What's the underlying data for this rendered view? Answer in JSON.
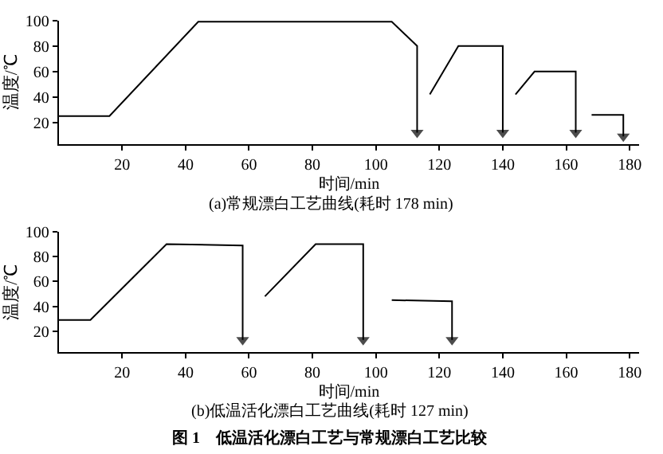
{
  "chart_data": [
    {
      "type": "line",
      "title": "(a)常规漂白工艺曲线(耗时 178 min)",
      "xlabel": "时间/min",
      "ylabel": "温度/℃",
      "xlim": [
        0,
        183
      ],
      "ylim": [
        3,
        100
      ],
      "xticks": [
        20,
        40,
        60,
        80,
        100,
        120,
        140,
        160,
        180
      ],
      "yticks": [
        20,
        40,
        60,
        80,
        100
      ],
      "line_style": "solid",
      "series": [
        {
          "color": "#000000",
          "x": [
            0,
            16,
            44,
            105,
            113,
            113
          ],
          "values": [
            25,
            25,
            99,
            99,
            80,
            12
          ]
        },
        {
          "color": "#000000",
          "x": [
            117,
            126,
            140,
            140
          ],
          "values": [
            42,
            80,
            80,
            12
          ]
        },
        {
          "color": "#000000",
          "x": [
            144,
            150,
            163,
            163
          ],
          "values": [
            42,
            60,
            60,
            12
          ]
        },
        {
          "color": "#000000",
          "x": [
            168,
            178,
            178
          ],
          "values": [
            26,
            26,
            9
          ]
        }
      ]
    },
    {
      "type": "line",
      "title": "(b)低温活化漂白工艺曲线(耗时 127 min)",
      "xlabel": "时间/min",
      "ylabel": "温度/℃",
      "xlim": [
        0,
        183
      ],
      "ylim": [
        3,
        100
      ],
      "xticks": [
        20,
        40,
        60,
        80,
        100,
        120,
        140,
        160,
        180
      ],
      "yticks": [
        20,
        40,
        60,
        80,
        100
      ],
      "line_style": "solid",
      "annotations": [
        "图 1　低温活化漂白工艺与常规漂白工艺比较"
      ],
      "series": [
        {
          "color": "#000000",
          "x": [
            0,
            10,
            34,
            58,
            58
          ],
          "values": [
            29,
            29,
            90,
            89,
            13
          ]
        },
        {
          "color": "#000000",
          "x": [
            65,
            81,
            96,
            96
          ],
          "values": [
            48,
            90,
            90,
            13
          ]
        },
        {
          "color": "#000000",
          "x": [
            105,
            124,
            124
          ],
          "values": [
            45,
            44,
            13
          ]
        }
      ]
    }
  ]
}
